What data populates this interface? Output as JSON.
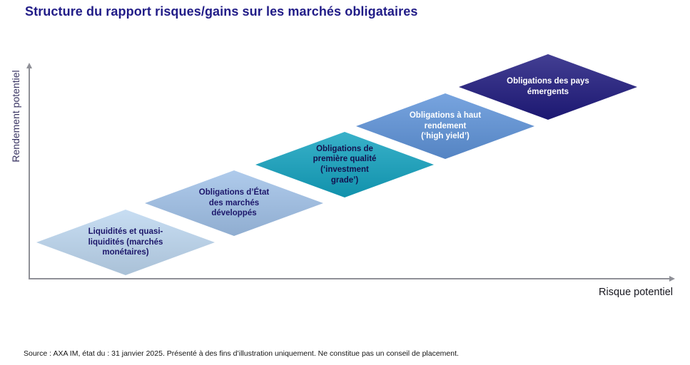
{
  "title": {
    "text": "Structure du rapport risques/gains sur les marchés obligataires",
    "color": "#211c87"
  },
  "axes": {
    "y_label": "Rendement potentiel",
    "x_label": "Risque potentiel",
    "line_color": "#8f9097"
  },
  "diamonds": [
    {
      "label": "Liquidités et quasi-liquidités (marchés monétaires)",
      "lines": [
        "Liquidités et quasi-",
        "liquidités (marchés",
        "monétaires)"
      ],
      "fill": "#bdd7f0",
      "text_color": "#1c166a"
    },
    {
      "label": "Obligations d’État des marchés développés",
      "lines": [
        "Obligations d’État",
        "des marchés",
        "développés"
      ],
      "fill": "#a0c1e8",
      "text_color": "#1c166a"
    },
    {
      "label": "Obligations de première qualité (‘investment grade’)",
      "lines": [
        "Obligations de",
        "première qualité",
        "(‘investment",
        "grade’)"
      ],
      "fill": "#13a2bf",
      "text_color": "#14114f"
    },
    {
      "label": "Obligations à haut rendement (‘high yield’)",
      "lines": [
        "Obligations à haut",
        "rendement",
        "(‘high yield’)"
      ],
      "fill": "#5e93d9",
      "text_color": "#ffffff"
    },
    {
      "label": "Obligations des pays émergents",
      "lines": [
        "Obligations des pays",
        "émergents"
      ],
      "fill": "#1f1a7e",
      "text_color": "#ffffff"
    }
  ],
  "source": "Source : AXA IM, état du : 31 janvier 2025. Présenté à des fins d’illustration uniquement. Ne constitue pas un conseil de placement."
}
